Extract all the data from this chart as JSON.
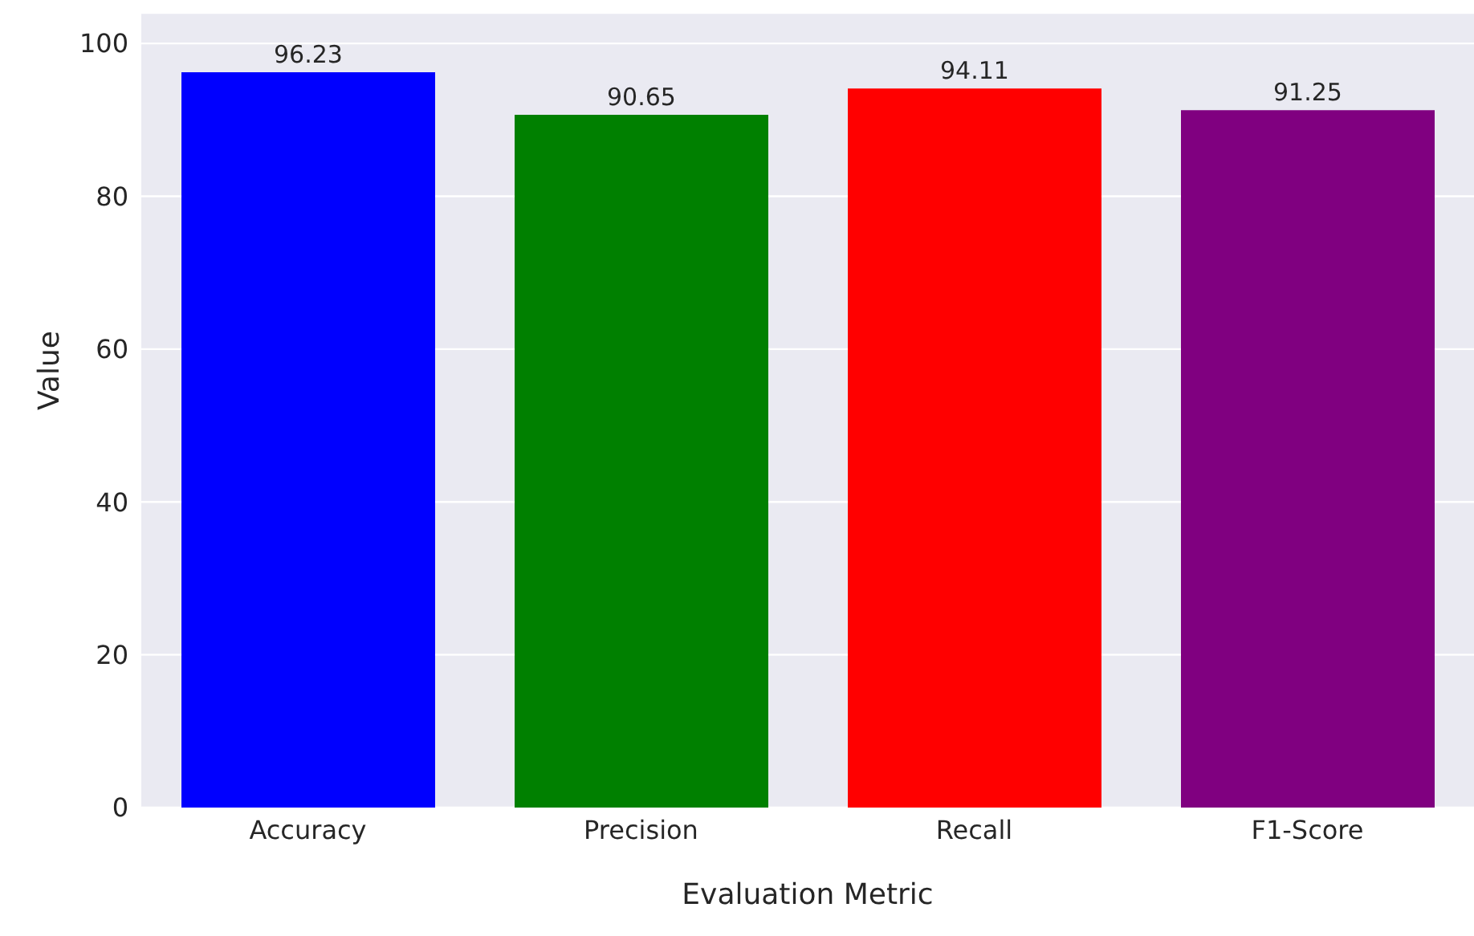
{
  "chart_data": {
    "type": "bar",
    "xlabel": "Evaluation Metric",
    "ylabel": "Value",
    "categories": [
      "Accuracy",
      "Precision",
      "Recall",
      "F1-Score"
    ],
    "values": [
      96.23,
      90.65,
      94.11,
      91.25
    ],
    "colors": [
      "#0000ff",
      "#008000",
      "#ff0000",
      "#800080"
    ],
    "ylim": [
      0,
      104
    ],
    "yticks": [
      0,
      20,
      40,
      60,
      80,
      100
    ],
    "grid": "y",
    "data_labels": true
  }
}
